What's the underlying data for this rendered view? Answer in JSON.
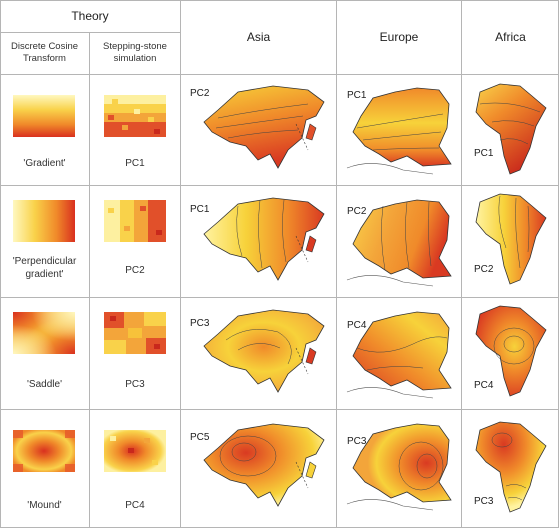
{
  "header": {
    "theory": "Theory",
    "dct": "Discrete Cosine\nTransform",
    "sss": "Stepping-stone\nsimulation",
    "asia": "Asia",
    "europe": "Europe",
    "africa": "Africa"
  },
  "rows": [
    {
      "pattern": "'Gradient'",
      "sim_label": "PC1",
      "asia_label": "PC2",
      "europe_label": "PC1",
      "africa_label": "PC1"
    },
    {
      "pattern": "'Perpendicular\ngradient'",
      "sim_label": "PC2",
      "asia_label": "PC1",
      "europe_label": "PC2",
      "africa_label": "PC2"
    },
    {
      "pattern": "'Saddle'",
      "sim_label": "PC3",
      "asia_label": "PC3",
      "europe_label": "PC4",
      "africa_label": "PC4"
    },
    {
      "pattern": "'Mound'",
      "sim_label": "PC4",
      "asia_label": "PC5",
      "europe_label": "PC3",
      "africa_label": "PC3"
    }
  ],
  "colors": {
    "light": "#fff7b0",
    "yellow": "#f7d23a",
    "orange": "#f08a2a",
    "red": "#d93a22",
    "grid": "#b5b5b5"
  }
}
